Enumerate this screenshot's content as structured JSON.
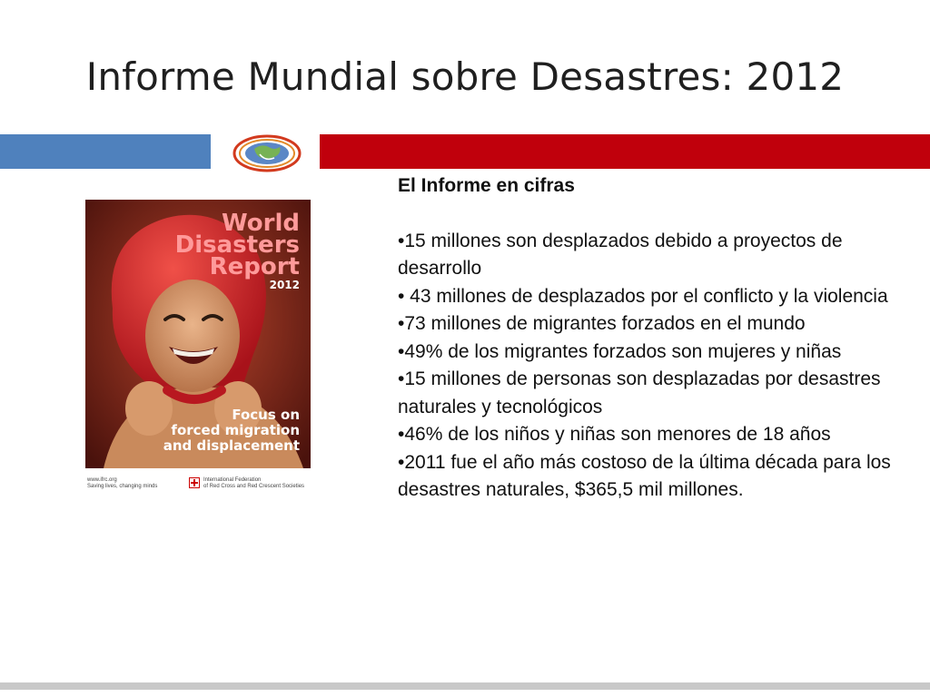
{
  "slide": {
    "title": "Informe Mundial sobre Desastres: 2012"
  },
  "cover": {
    "title_line1": "World",
    "title_line2": "Disasters",
    "title_line3": "Report",
    "year": "2012",
    "subtitle_line1": "Focus on",
    "subtitle_line2": "forced migration",
    "subtitle_line3": "and displacement",
    "strip_left_line1": "www.ifrc.org",
    "strip_left_line2": "Saving lives, changing minds",
    "strip_right_line1": "International Federation",
    "strip_right_line2": "of Red Cross and Red Crescent Societies"
  },
  "facts": {
    "heading": "El Informe en cifras",
    "items": [
      "•15 millones son desplazados debido a proyectos de desarrollo",
      "• 43 millones de desplazados por el conflicto y la violencia",
      "•73 millones de migrantes forzados en el mundo",
      "•49% de los migrantes forzados son mujeres y niñas",
      "•15 millones de personas son desplazadas por desastres naturales y tecnológicos",
      "•46% de los niños y niñas son menores de 18 años",
      "•2011 fue el año más costoso de la última década para los desastres naturales, $365,5 mil millones."
    ]
  },
  "colors": {
    "band_left": "#4f81bd",
    "band_right": "#c0000c"
  }
}
